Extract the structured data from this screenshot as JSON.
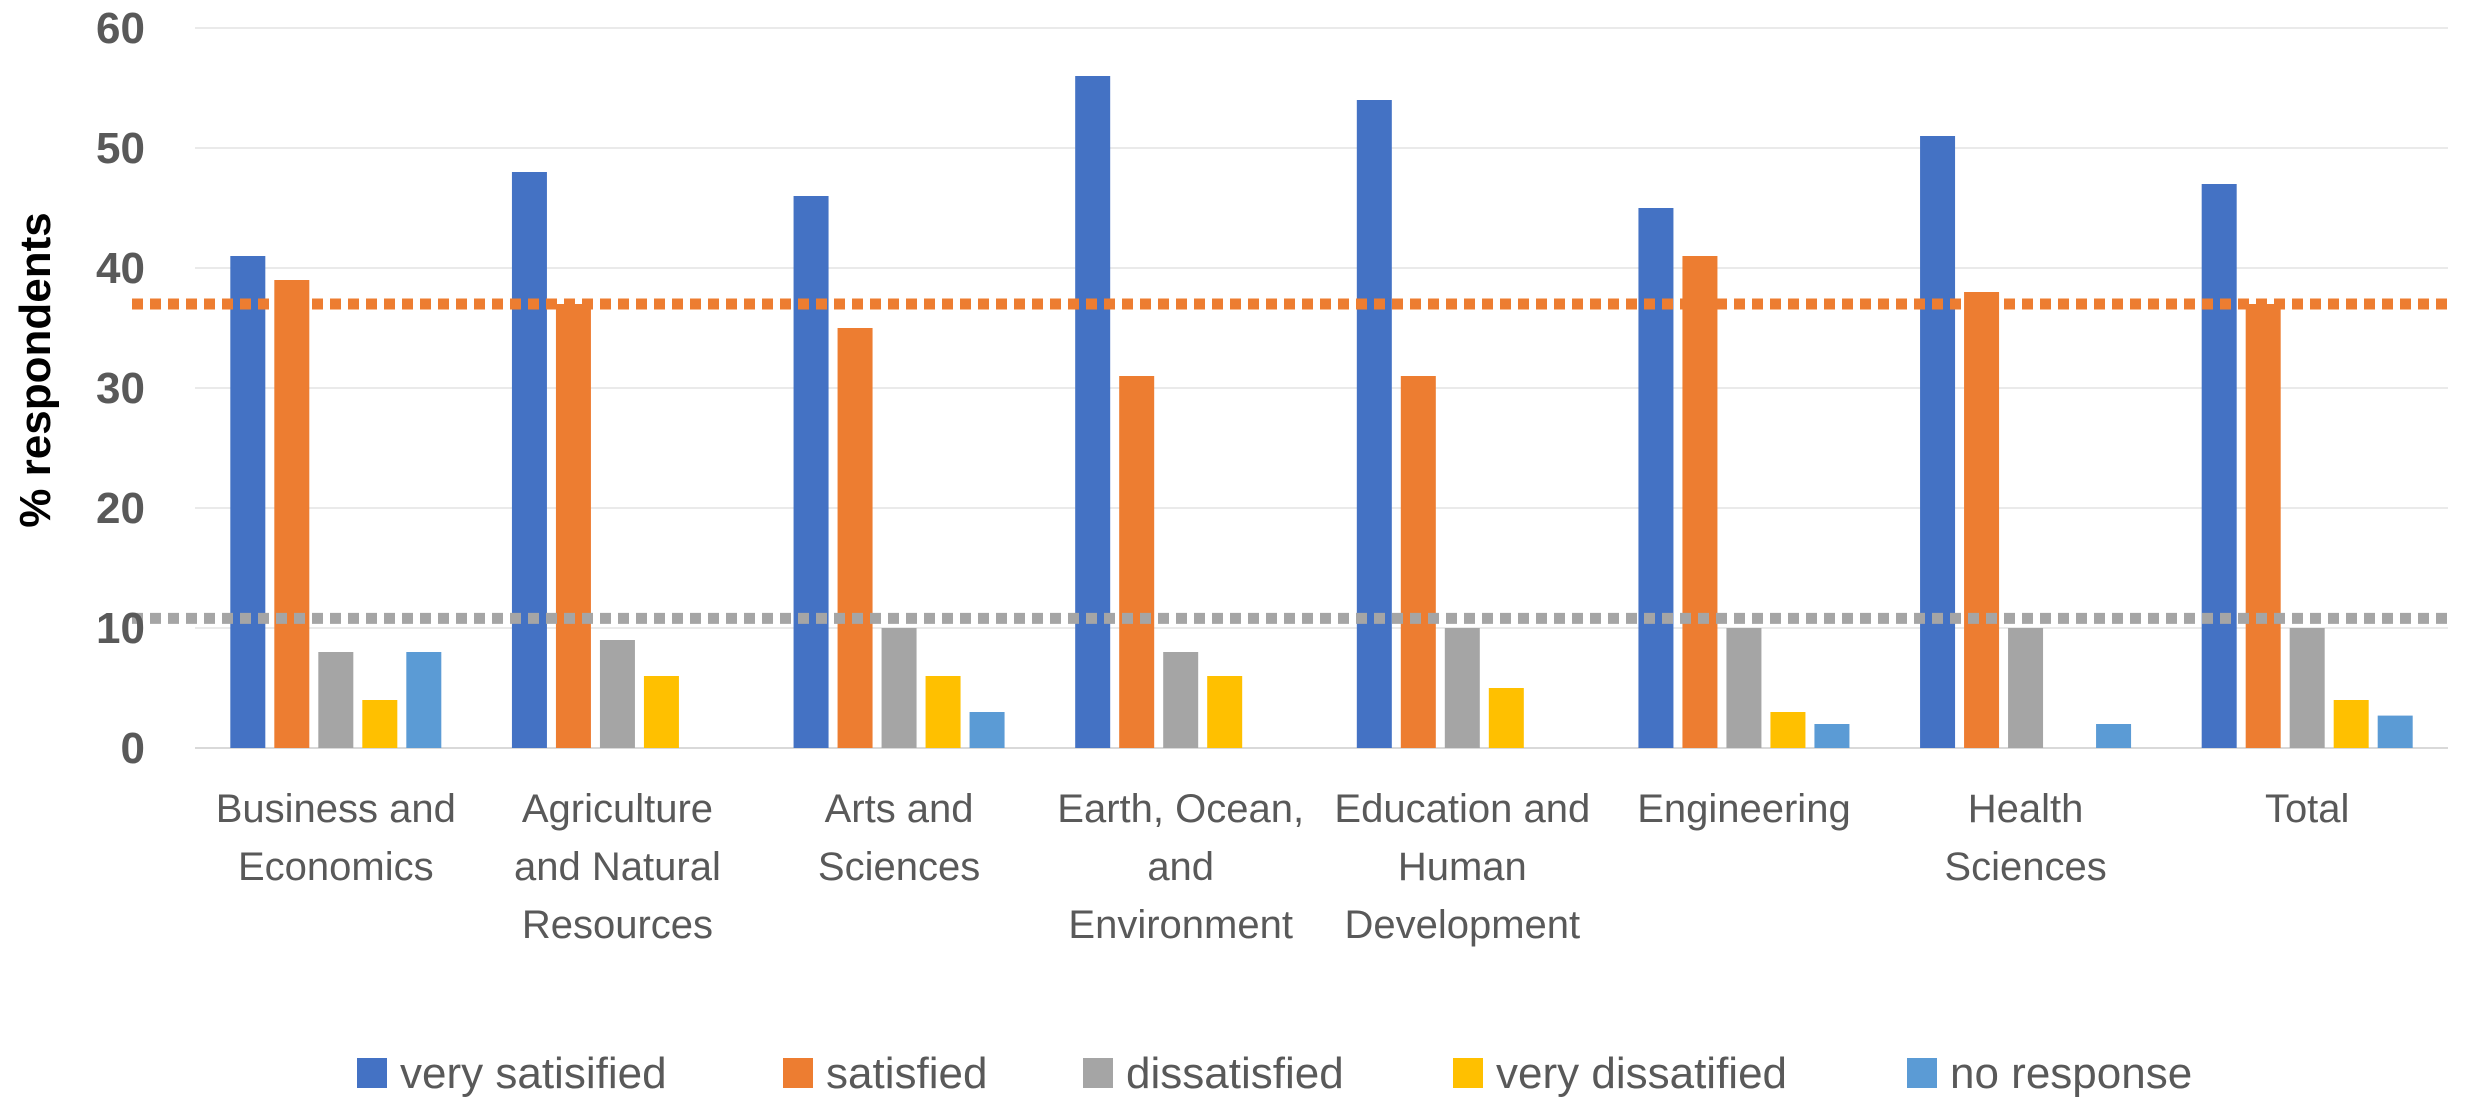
{
  "chart_data": {
    "type": "bar",
    "ylabel": "%  respondents",
    "ylim": [
      0,
      60
    ],
    "yticks": [
      "0",
      "10",
      "20",
      "30",
      "40",
      "50",
      "60"
    ],
    "grid": true,
    "legend_position": "bottom",
    "categories": [
      [
        "Business and",
        "Economics"
      ],
      [
        "Agriculture",
        "and Natural",
        "Resources"
      ],
      [
        "Arts and",
        "Sciences"
      ],
      [
        "Earth, Ocean,",
        "and",
        "Environment"
      ],
      [
        "Education and",
        "Human",
        "Development"
      ],
      [
        "Engineering"
      ],
      [
        "Health",
        "Sciences"
      ],
      [
        "Total"
      ]
    ],
    "series": [
      {
        "name": "very satisified",
        "color": "#4472C4",
        "values": [
          41,
          48,
          46,
          56,
          54,
          45,
          51,
          47
        ]
      },
      {
        "name": "satisfied",
        "color": "#ED7D31",
        "values": [
          39,
          37,
          35,
          31,
          31,
          41,
          38,
          37
        ]
      },
      {
        "name": "dissatisfied",
        "color": "#A5A5A5",
        "values": [
          8,
          9,
          10,
          8,
          10,
          10,
          10,
          10
        ]
      },
      {
        "name": "very dissatified",
        "color": "#FFC000",
        "values": [
          4,
          6,
          6,
          6,
          5,
          3,
          0,
          4
        ]
      },
      {
        "name": "no response",
        "color": "#5B9BD5",
        "values": [
          8,
          0,
          3,
          0,
          0,
          2,
          2,
          2.7
        ]
      }
    ],
    "reference_lines": [
      {
        "value": 37,
        "color": "#ED7D31",
        "style": "dotted"
      },
      {
        "value": 10.8,
        "color": "#A5A5A5",
        "style": "dotted"
      }
    ]
  }
}
